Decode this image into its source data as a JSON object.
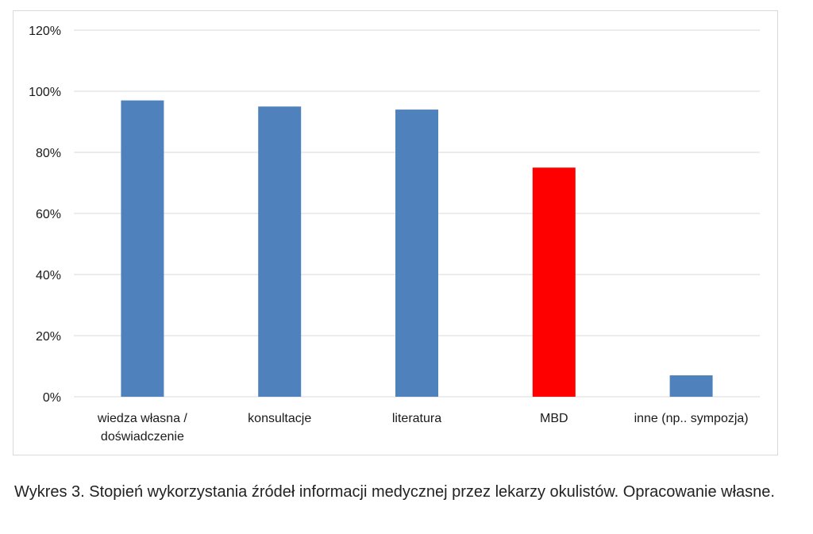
{
  "chart_data": {
    "type": "bar",
    "categories": [
      "wiedza własna /\ndoświadczenie",
      "konsultacje",
      "literatura",
      "MBD",
      "inne (np.. sympozja)"
    ],
    "values": [
      97,
      95,
      94,
      75,
      7
    ],
    "ylim": [
      0,
      120
    ],
    "yticks": [
      0,
      20,
      40,
      60,
      80,
      100,
      120
    ],
    "ytick_labels": [
      "0%",
      "20%",
      "40%",
      "60%",
      "80%",
      "100%",
      "120%"
    ],
    "bar_colors": [
      "#4f81bd",
      "#4f81bd",
      "#4f81bd",
      "#ff0000",
      "#4f81bd"
    ],
    "grid": true,
    "legend": false
  },
  "colors": {
    "default_bar": "#4f81bd",
    "highlight_bar": "#ff0000",
    "grid": "#d9d9d9"
  },
  "caption": "Wykres 3. Stopień wykorzystania źródeł informacji medycznej przez lekarzy okulistów. Opracowanie własne."
}
